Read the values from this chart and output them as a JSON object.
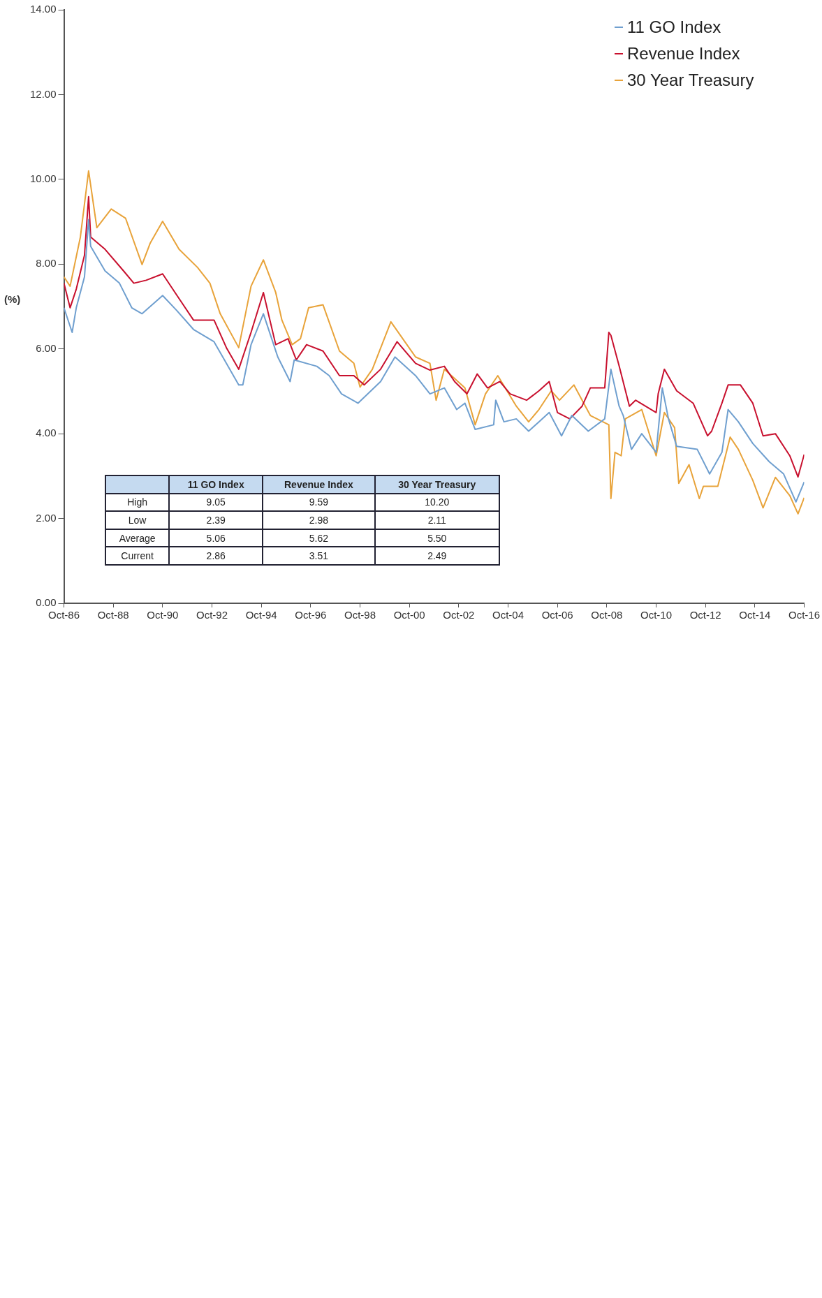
{
  "chart_data": {
    "type": "line",
    "ylabel": "(%)",
    "legend": "top right",
    "xlim": [
      "1986-10",
      "2016-10"
    ],
    "xticks": [
      {
        "value": "1986-10",
        "label": "Oct-86"
      },
      {
        "value": "1988-10",
        "label": "Oct-88"
      },
      {
        "value": "1990-10",
        "label": "Oct-90"
      },
      {
        "value": "1992-10",
        "label": "Oct-92"
      },
      {
        "value": "1994-10",
        "label": "Oct-94"
      },
      {
        "value": "1996-10",
        "label": "Oct-96"
      },
      {
        "value": "1998-10",
        "label": "Oct-98"
      },
      {
        "value": "2000-10",
        "label": "Oct-00"
      },
      {
        "value": "2002-10",
        "label": "Oct-02"
      },
      {
        "value": "2004-10",
        "label": "Oct-04"
      },
      {
        "value": "2006-10",
        "label": "Oct-06"
      },
      {
        "value": "2008-10",
        "label": "Oct-08"
      },
      {
        "value": "2010-10",
        "label": "Oct-10"
      },
      {
        "value": "2012-10",
        "label": "Oct-12"
      },
      {
        "value": "2014-10",
        "label": "Oct-14"
      },
      {
        "value": "2016-10",
        "label": "Oct-16"
      }
    ],
    "ylim": [
      0,
      14
    ],
    "yticks": [
      {
        "value": 0,
        "label": "0.00"
      },
      {
        "value": 2,
        "label": "2.00"
      },
      {
        "value": 4,
        "label": "4.00"
      },
      {
        "value": 6,
        "label": "6.00"
      },
      {
        "value": 8,
        "label": "8.00"
      },
      {
        "value": 10,
        "label": "10.00"
      },
      {
        "value": 12,
        "label": "12.00"
      },
      {
        "value": 14,
        "label": "14.00"
      }
    ],
    "series": [
      {
        "name": "11 GO Index",
        "color": "#6f9fcf",
        "x": [
          "1986-10",
          "1987-02",
          "1987-04",
          "1987-08",
          "1987-10",
          "1987-11",
          "1988-06",
          "1989-01",
          "1989-07",
          "1989-12",
          "1990-10",
          "1991-05",
          "1992-01",
          "1992-11",
          "1993-11",
          "1994-01",
          "1994-05",
          "1994-11",
          "1995-06",
          "1995-12",
          "1996-02",
          "1997-01",
          "1997-07",
          "1998-01",
          "1998-09",
          "1999-08",
          "2000-03",
          "2001-01",
          "2001-08",
          "2002-03",
          "2002-09",
          "2003-01",
          "2003-06",
          "2004-03",
          "2004-04",
          "2004-08",
          "2005-02",
          "2005-08",
          "2006-01",
          "2006-06",
          "2006-12",
          "2007-05",
          "2008-01",
          "2008-09",
          "2008-12",
          "2009-04",
          "2009-06",
          "2009-10",
          "2010-03",
          "2010-10",
          "2011-01",
          "2011-04",
          "2011-08",
          "2012-06",
          "2012-12",
          "2013-06",
          "2013-09",
          "2014-02",
          "2014-09",
          "2015-05",
          "2015-12",
          "2016-06",
          "2016-10"
        ],
        "values": [
          6.97,
          6.39,
          6.97,
          7.7,
          9.05,
          8.42,
          7.84,
          7.55,
          6.97,
          6.83,
          7.26,
          6.9,
          6.46,
          6.17,
          5.15,
          5.15,
          6.1,
          6.83,
          5.81,
          5.23,
          5.74,
          5.59,
          5.37,
          4.94,
          4.72,
          5.23,
          5.81,
          5.37,
          4.94,
          5.08,
          4.57,
          4.72,
          4.1,
          4.21,
          4.79,
          4.28,
          4.35,
          4.06,
          4.28,
          4.5,
          3.95,
          4.43,
          4.06,
          4.35,
          5.52,
          4.65,
          4.43,
          3.63,
          4.0,
          3.56,
          5.08,
          4.35,
          3.7,
          3.63,
          3.05,
          3.56,
          4.57,
          4.28,
          3.77,
          3.34,
          3.05,
          2.39,
          2.86
        ]
      },
      {
        "name": "Revenue Index",
        "color": "#c8102e",
        "x": [
          "1986-10",
          "1987-01",
          "1987-04",
          "1987-08",
          "1987-10",
          "1987-11",
          "1988-06",
          "1989-03",
          "1989-08",
          "1990-02",
          "1990-10",
          "1991-05",
          "1992-01",
          "1992-11",
          "1993-05",
          "1993-11",
          "1994-05",
          "1994-11",
          "1995-05",
          "1995-11",
          "1996-03",
          "1996-08",
          "1997-04",
          "1997-12",
          "1998-07",
          "1998-12",
          "1999-08",
          "2000-04",
          "2001-01",
          "2001-08",
          "2002-03",
          "2002-08",
          "2003-02",
          "2003-07",
          "2003-12",
          "2004-06",
          "2004-11",
          "2005-07",
          "2006-01",
          "2006-06",
          "2006-10",
          "2007-04",
          "2007-10",
          "2008-02",
          "2008-09",
          "2008-11",
          "2008-12",
          "2009-04",
          "2009-09",
          "2009-12",
          "2010-10",
          "2010-11",
          "2011-02",
          "2011-08",
          "2012-04",
          "2012-11",
          "2013-01",
          "2013-06",
          "2013-09",
          "2014-03",
          "2014-09",
          "2015-02",
          "2015-08",
          "2016-03",
          "2016-07",
          "2016-10"
        ],
        "values": [
          7.55,
          6.97,
          7.41,
          8.21,
          9.59,
          8.64,
          8.35,
          7.84,
          7.55,
          7.62,
          7.77,
          7.26,
          6.68,
          6.68,
          6.03,
          5.52,
          6.39,
          7.33,
          6.1,
          6.24,
          5.74,
          6.1,
          5.95,
          5.37,
          5.37,
          5.15,
          5.52,
          6.17,
          5.66,
          5.5,
          5.59,
          5.23,
          4.94,
          5.41,
          5.08,
          5.23,
          4.94,
          4.79,
          5.01,
          5.23,
          4.5,
          4.35,
          4.65,
          5.08,
          5.08,
          6.39,
          6.32,
          5.6,
          4.65,
          4.79,
          4.5,
          4.94,
          5.52,
          5.01,
          4.72,
          3.95,
          4.06,
          4.72,
          5.15,
          5.15,
          4.72,
          3.95,
          4.0,
          3.48,
          2.98,
          3.51
        ]
      },
      {
        "name": "30 Year Treasury",
        "color": "#e8a33a",
        "x": [
          "1986-10",
          "1987-01",
          "1987-06",
          "1987-10",
          "1988-02",
          "1988-09",
          "1989-04",
          "1989-12",
          "1990-04",
          "1990-10",
          "1991-06",
          "1992-03",
          "1992-09",
          "1993-02",
          "1993-11",
          "1994-05",
          "1994-11",
          "1995-05",
          "1995-08",
          "1996-01",
          "1996-05",
          "1996-09",
          "1997-04",
          "1997-12",
          "1998-07",
          "1998-10",
          "1999-04",
          "2000-01",
          "2001-01",
          "2001-08",
          "2001-11",
          "2002-03",
          "2003-01",
          "2003-06",
          "2003-11",
          "2004-05",
          "2005-02",
          "2005-08",
          "2006-01",
          "2006-07",
          "2006-11",
          "2007-06",
          "2008-02",
          "2008-11",
          "2008-12",
          "2009-02",
          "2009-05",
          "2009-07",
          "2010-03",
          "2010-10",
          "2011-02",
          "2011-07",
          "2011-09",
          "2012-02",
          "2012-07",
          "2012-09",
          "2013-04",
          "2013-10",
          "2014-02",
          "2014-09",
          "2015-02",
          "2015-08",
          "2016-03",
          "2016-07",
          "2016-10"
        ],
        "values": [
          7.7,
          7.48,
          8.64,
          10.2,
          8.86,
          9.3,
          9.08,
          7.99,
          8.5,
          9.01,
          8.35,
          7.92,
          7.55,
          6.83,
          6.03,
          7.48,
          8.1,
          7.33,
          6.68,
          6.1,
          6.24,
          6.97,
          7.04,
          5.95,
          5.66,
          5.1,
          5.52,
          6.64,
          5.81,
          5.66,
          4.79,
          5.52,
          5.08,
          4.21,
          4.94,
          5.37,
          4.65,
          4.28,
          4.57,
          5.01,
          4.79,
          5.15,
          4.43,
          4.21,
          2.47,
          3.56,
          3.48,
          4.35,
          4.57,
          3.48,
          4.5,
          4.14,
          2.83,
          3.27,
          2.47,
          2.76,
          2.76,
          3.92,
          3.63,
          2.9,
          2.25,
          2.97,
          2.54,
          2.11,
          2.49
        ]
      }
    ],
    "annotations": [
      "11 GO Index",
      "Revenue Index",
      "30 Year Treasury",
      "High",
      "9.05",
      "9.59",
      "10.20",
      "Low",
      "2.39",
      "2.98",
      "2.11",
      "Average",
      "5.06",
      "5.62",
      "5.50",
      "Current",
      "2.86",
      "3.51",
      "2.49"
    ]
  }
}
